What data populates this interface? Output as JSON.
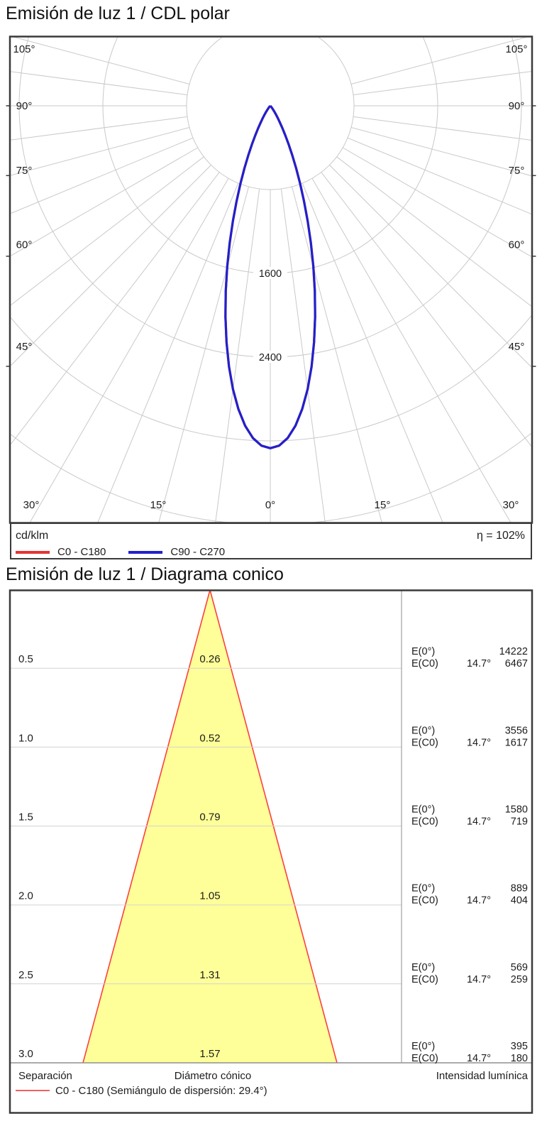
{
  "polar": {
    "title": "Emisión de luz 1 / CDL polar",
    "unit_label": "cd/klm",
    "efficiency_label": "η = 102%",
    "legend": [
      {
        "label": "C0 - C180",
        "color": "#e63232"
      },
      {
        "label": "C90 - C270",
        "color": "#2121cc"
      }
    ],
    "side_labels": [
      "105°",
      "90°",
      "75°",
      "60°",
      "45°"
    ],
    "bottom_labels": [
      "30°",
      "15°",
      "0°"
    ],
    "radial_labels": [
      "1600",
      "2400"
    ]
  },
  "cone": {
    "title": "Emisión de luz 1 / Diagrama conico",
    "e0_label": "E(0°)",
    "ec0_label": "E(C0)",
    "columns": {
      "separation": "Separación",
      "diameter": "Diámetro cónico",
      "intensity": "Intensidad lumínica"
    },
    "legend_label": "C0 - C180 (Semiángulo de dispersión: 29.4°)",
    "legend_color": "#f26060",
    "cone_fill_color": "#ffff99",
    "cone_edge_color": "#fb4040"
  },
  "chart_data": [
    {
      "type": "polar_line",
      "title": "Emisión de luz 1 / CDL polar",
      "unit": "cd/klm",
      "efficiency_percent": 102,
      "angle_ticks_deg": [
        0,
        15,
        30,
        45,
        60,
        75,
        90,
        105
      ],
      "angle_grid_step_deg": 7.5,
      "radial_ticks_cd_klm": [
        800,
        1600,
        2400,
        3200,
        4000
      ],
      "labeled_radial_ticks": [
        1600,
        2400
      ],
      "symmetric": true,
      "series": [
        {
          "name": "C0 - C180",
          "color": "#e63232",
          "peak_cd_klm": 3270,
          "points_deg_cd": [
            [
              0,
              3270
            ],
            [
              5,
              3018
            ],
            [
              10,
              2372
            ],
            [
              15,
              1589
            ],
            [
              20,
              906
            ],
            [
              25,
              440
            ],
            [
              30,
              182
            ],
            [
              35,
              64
            ],
            [
              40,
              19
            ]
          ],
          "model": {
            "type": "gaussian",
            "peak": 3270,
            "half_angle_deg": 14.7
          }
        },
        {
          "name": "C90 - C270",
          "color": "#2121cc",
          "peak_cd_klm": 3270,
          "points_deg_cd": [
            [
              0,
              3270
            ],
            [
              5,
              3018
            ],
            [
              10,
              2372
            ],
            [
              15,
              1589
            ],
            [
              20,
              906
            ],
            [
              25,
              440
            ],
            [
              30,
              182
            ],
            [
              35,
              64
            ],
            [
              40,
              19
            ]
          ],
          "model": {
            "type": "gaussian",
            "peak": 3270,
            "half_angle_deg": 14.7
          }
        }
      ]
    },
    {
      "type": "cone_diagram",
      "title": "Emisión de luz 1 / Diagrama conico",
      "beam_half_angle_label": "14.7°",
      "dispersion_semiangle_deg": 29.4,
      "rows": [
        {
          "separation": "0.5",
          "diameter": "0.26",
          "angle": "14.7°",
          "e0": "14222",
          "ec0": "6467"
        },
        {
          "separation": "1.0",
          "diameter": "0.52",
          "angle": "14.7°",
          "e0": "3556",
          "ec0": "1617"
        },
        {
          "separation": "1.5",
          "diameter": "0.79",
          "angle": "14.7°",
          "e0": "1580",
          "ec0": "719"
        },
        {
          "separation": "2.0",
          "diameter": "1.05",
          "angle": "14.7°",
          "e0": "889",
          "ec0": "404"
        },
        {
          "separation": "2.5",
          "diameter": "1.31",
          "angle": "14.7°",
          "e0": "569",
          "ec0": "259"
        },
        {
          "separation": "3.0",
          "diameter": "1.57",
          "angle": "14.7°",
          "e0": "395",
          "ec0": "180"
        }
      ]
    }
  ]
}
